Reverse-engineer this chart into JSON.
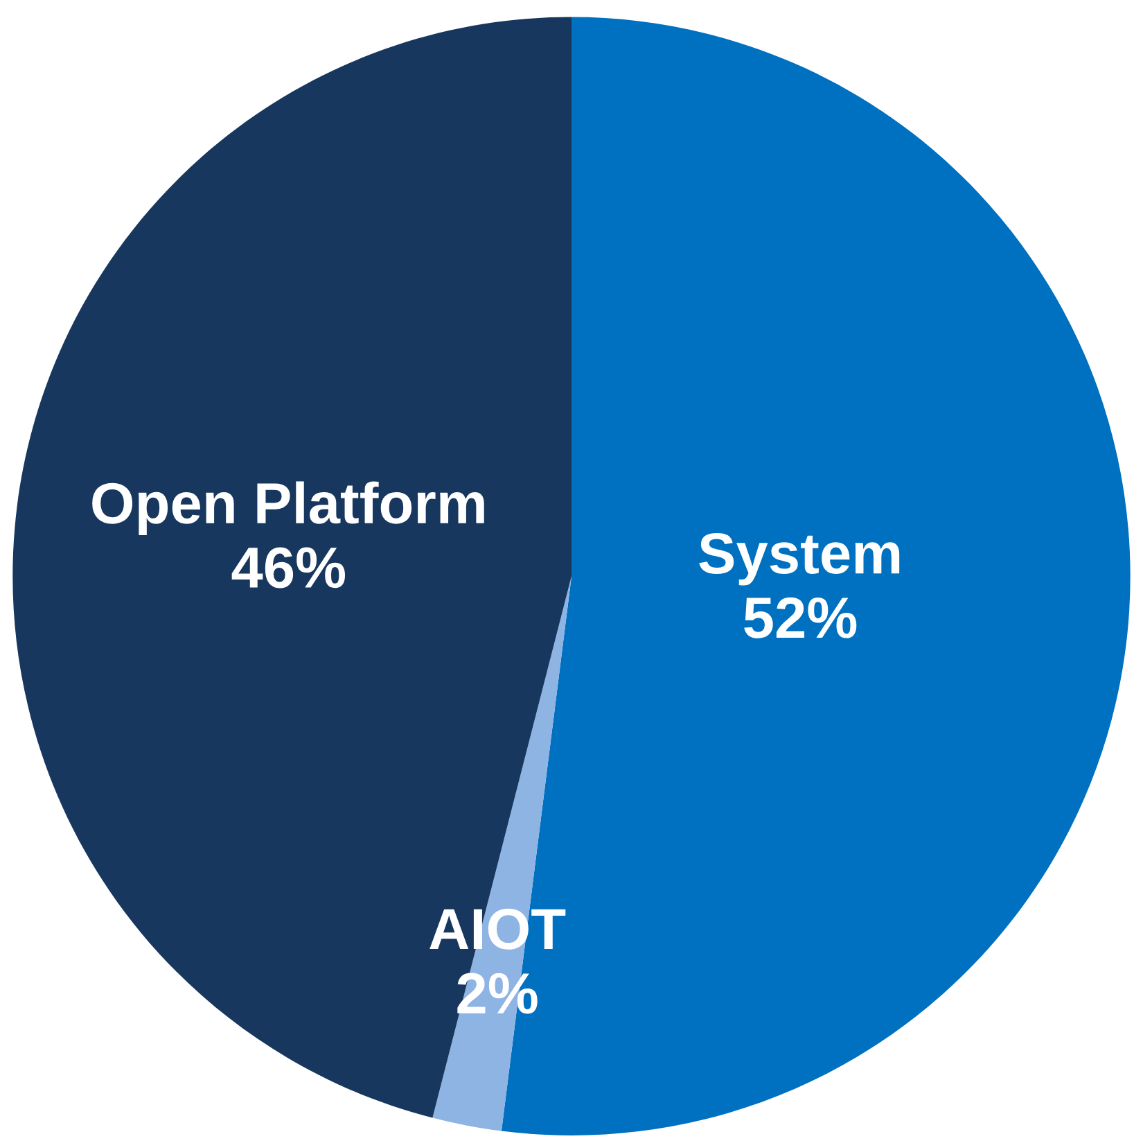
{
  "chart_data": {
    "type": "pie",
    "categories": [
      "System",
      "AIOT",
      "Open Platform"
    ],
    "values": [
      52,
      2,
      46
    ],
    "colors": [
      "#0070c0",
      "#8eb4e3",
      "#17375e"
    ],
    "value_labels": [
      "52%",
      "2%",
      "46%"
    ]
  }
}
